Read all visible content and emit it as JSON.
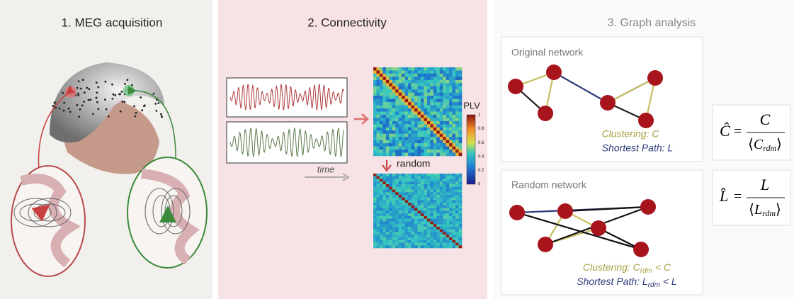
{
  "panels": [
    {
      "title": "1. MEG acquisition"
    },
    {
      "title": "2. Connectivity",
      "time_label": "time",
      "random_label": "random",
      "colorbar": {
        "label": "PLV",
        "ticks": [
          1,
          0.8,
          0.6,
          0.4,
          0.2,
          0
        ]
      }
    },
    {
      "title": "3. Graph analysis",
      "networks": [
        {
          "title": "Original network",
          "clustering": "Clustering: C",
          "path": "Shortest Path: L"
        },
        {
          "title": "Random network",
          "clustering": [
            "Clustering: C",
            "rdm",
            " < C"
          ],
          "path": [
            "Shortest Path: L",
            "rdm",
            " < L"
          ]
        }
      ],
      "formulas": [
        {
          "lhs": "Ĉ",
          "eq": "=",
          "num": "C",
          "den": "C",
          "sub": "rdm"
        },
        {
          "lhs": "L̂",
          "eq": "=",
          "num": "L",
          "den": "L",
          "sub": "rdm"
        }
      ]
    }
  ]
}
